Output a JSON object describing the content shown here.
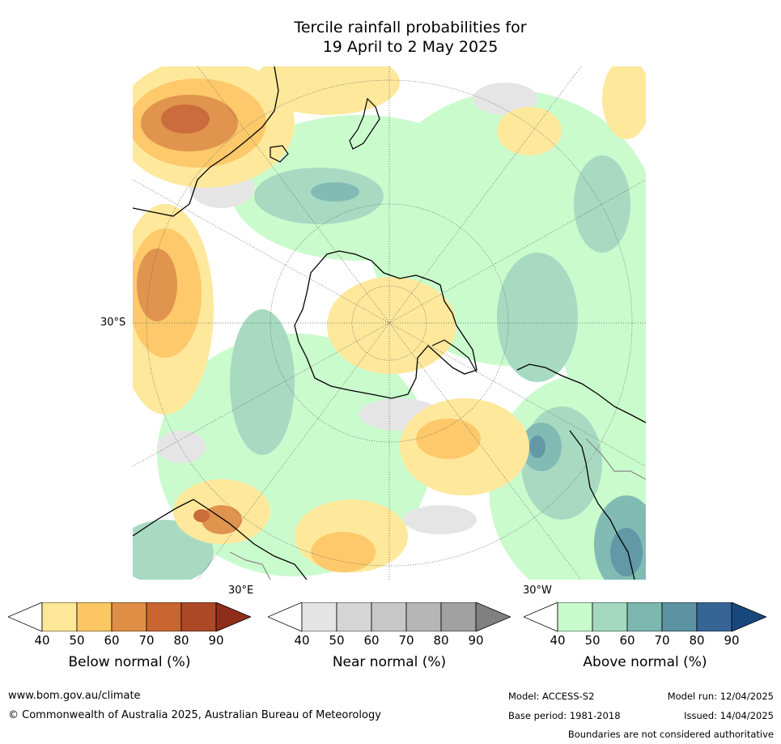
{
  "title": {
    "line1": "Tercile rainfall probabilities for",
    "line2": "19 April to 2 May 2025"
  },
  "map": {
    "projection": "south-polar-stereographic",
    "lat_label": "30°S",
    "lon_labels": [
      "30°E",
      "30°W"
    ],
    "ocean_color": "#ffffff",
    "coast_color": "#000000"
  },
  "legends": [
    {
      "caption": "Below normal (%)",
      "ticks": [
        "40",
        "50",
        "60",
        "70",
        "80",
        "90"
      ],
      "colors": [
        "#ffffff",
        "#fee797",
        "#fdc764",
        "#df8f45",
        "#c86531",
        "#ac4a28",
        "#8d2d1a"
      ]
    },
    {
      "caption": "Near normal (%)",
      "ticks": [
        "40",
        "50",
        "60",
        "70",
        "80",
        "90"
      ],
      "colors": [
        "#ffffff",
        "#e4e4e4",
        "#d6d6d6",
        "#c7c7c7",
        "#b6b6b6",
        "#a1a1a1",
        "#808080"
      ]
    },
    {
      "caption": "Above normal (%)",
      "ticks": [
        "40",
        "50",
        "60",
        "70",
        "80",
        "90"
      ],
      "colors": [
        "#ffffff",
        "#c8fbcb",
        "#a4d9bf",
        "#7cb8b0",
        "#5b93a3",
        "#356595",
        "#18477c"
      ]
    }
  ],
  "footer": {
    "website": "www.bom.gov.au/climate",
    "copyright": "© Commonwealth of Australia 2025, Australian Bureau of Meteorology",
    "model": "Model: ACCESS-S2",
    "base_period": "Base period: 1981-2018",
    "model_run": "Model run: 12/04/2025",
    "issued": "Issued: 14/04/2025",
    "disclaimer": "Boundaries are not considered authoritative"
  }
}
